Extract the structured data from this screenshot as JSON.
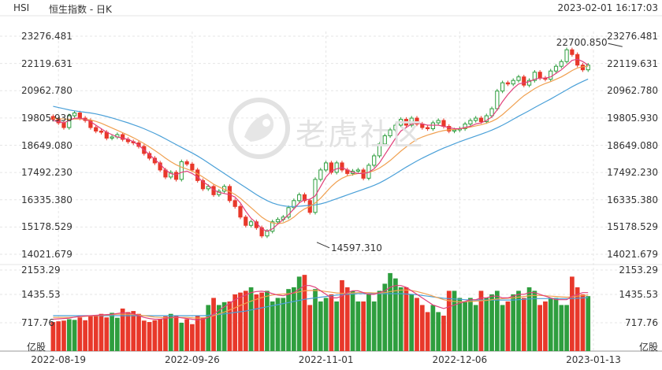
{
  "header": {
    "code": "HSI",
    "name": "恒生指数 - 日K",
    "datetime": "2023-02-01 16:17:03"
  },
  "watermark": "老虎社区",
  "chart_data": {
    "type": "candlestick",
    "price_ticks": [
      "23276.481",
      "22119.631",
      "20962.780",
      "19805.930",
      "18649.080",
      "17492.230",
      "16335.380",
      "15178.529",
      "14021.679"
    ],
    "price_range": [
      14021.679,
      23276.481
    ],
    "volume_ticks": [
      "2153.29",
      "1435.53",
      "717.76"
    ],
    "volume_unit": "亿股",
    "volume_range": [
      0,
      2153.29
    ],
    "date_ticks": [
      {
        "index": 1,
        "label": "2022-08-19"
      },
      {
        "index": 26,
        "label": "2022-09-26"
      },
      {
        "index": 51,
        "label": "2022-11-01"
      },
      {
        "index": 76,
        "label": "2022-12-06"
      },
      {
        "index": 101,
        "label": "2023-01-13"
      }
    ],
    "annotations": [
      {
        "label": "22700.850",
        "index": 107,
        "value": 22700.85
      },
      {
        "label": "14597.310",
        "index": 49,
        "value": 14597.31
      }
    ],
    "ma_colors": {
      "short": "#e0407a",
      "mid": "#f0a050",
      "long": "#4aa0d8"
    },
    "colors": {
      "up": "#2e9e3e",
      "down": "#e8382a",
      "grid": "#e6e6e6",
      "axis": "#999999"
    },
    "close": [
      19750,
      19600,
      19400,
      19900,
      20020,
      19800,
      19700,
      19400,
      19250,
      19200,
      18950,
      19000,
      19100,
      18900,
      18800,
      18750,
      18600,
      18300,
      18100,
      17900,
      17600,
      17300,
      17500,
      17200,
      17950,
      17850,
      17600,
      17150,
      16800,
      16900,
      16550,
      16700,
      16900,
      16300,
      16050,
      15600,
      15250,
      15400,
      15150,
      14800,
      15000,
      15400,
      15500,
      15600,
      16000,
      16300,
      16550,
      16300,
      15800,
      17200,
      17600,
      17900,
      17500,
      17900,
      17600,
      17450,
      17550,
      17600,
      17250,
      17800,
      18200,
      18700,
      19050,
      19300,
      19500,
      19750,
      19500,
      19800,
      19550,
      19400,
      19350,
      19600,
      19700,
      19450,
      19250,
      19300,
      19350,
      19550,
      19700,
      19800,
      19650,
      19900,
      20200,
      20950,
      21300,
      21250,
      21400,
      21550,
      21200,
      21400,
      21750,
      21500,
      21450,
      21800,
      22000,
      22200,
      22700,
      22500,
      22050,
      21850,
      22050
    ],
    "volume": [
      820,
      840,
      860,
      900,
      880,
      950,
      870,
      1000,
      1020,
      1050,
      950,
      1080,
      940,
      1200,
      1100,
      1130,
      1050,
      860,
      820,
      870,
      900,
      980,
      1050,
      1000,
      800,
      900,
      760,
      1000,
      950,
      1300,
      1500,
      1300,
      1380,
      1400,
      1600,
      1650,
      1700,
      1800,
      1600,
      1650,
      1700,
      1400,
      1500,
      1500,
      1750,
      1800,
      2100,
      2150,
      1300,
      1750,
      1400,
      1500,
      1600,
      1400,
      2000,
      1800,
      1700,
      1400,
      1400,
      1600,
      1400,
      1700,
      1900,
      2200,
      2050,
      1800,
      1800,
      1600,
      1500,
      1300,
      1100,
      1300,
      1100,
      1000,
      1700,
      1700,
      1500,
      1400,
      1500,
      1300,
      1700,
      1500,
      1600,
      1700,
      1300,
      1400,
      1600,
      1700,
      1500,
      1800,
      1700,
      1300,
      1400,
      1500,
      1500,
      1300,
      1300,
      2100,
      1800,
      1600,
      1550
    ],
    "ma_short": [
      19700,
      19650,
      19600,
      19700,
      19800,
      19800,
      19750,
      19650,
      19500,
      19350,
      19200,
      19100,
      19000,
      18950,
      18900,
      18800,
      18650,
      18450,
      18250,
      18050,
      17850,
      17600,
      17450,
      17400,
      17500,
      17550,
      17450,
      17300,
      17100,
      16950,
      16750,
      16650,
      16600,
      16550,
      16450,
      16200,
      15850,
      15550,
      15350,
      15100,
      15000,
      15100,
      15300,
      15500,
      15700,
      15950,
      16200,
      16350,
      16350,
      16500,
      16900,
      17300,
      17550,
      17650,
      17700,
      17600,
      17500,
      17450,
      17450,
      17500,
      17650,
      17900,
      18250,
      18600,
      18950,
      19250,
      19400,
      19550,
      19600,
      19550,
      19500,
      19500,
      19500,
      19450,
      19400,
      19350,
      19350,
      19400,
      19450,
      19550,
      19600,
      19700,
      19850,
      20150,
      20500,
      20800,
      21050,
      21250,
      21300,
      21350,
      21450,
      21500,
      21500,
      21550,
      21700,
      21850,
      22050,
      22250,
      22300,
      22200,
      22050
    ],
    "ma_mid": [
      19800,
      19780,
      19760,
      19750,
      19760,
      19760,
      19750,
      19720,
      19660,
      19580,
      19480,
      19380,
      19280,
      19180,
      19080,
      18970,
      18850,
      18720,
      18580,
      18430,
      18270,
      18100,
      17950,
      17820,
      17720,
      17640,
      17550,
      17440,
      17300,
      17150,
      17000,
      16880,
      16780,
      16680,
      16560,
      16400,
      16200,
      16000,
      15800,
      15600,
      15450,
      15350,
      15320,
      15350,
      15450,
      15600,
      15800,
      15950,
      16050,
      16200,
      16400,
      16650,
      16900,
      17100,
      17250,
      17350,
      17400,
      17450,
      17470,
      17500,
      17570,
      17680,
      17830,
      18000,
      18200,
      18400,
      18580,
      18750,
      18900,
      19000,
      19080,
      19150,
      19220,
      19270,
      19300,
      19320,
      19350,
      19380,
      19420,
      19470,
      19520,
      19580,
      19660,
      19780,
      19950,
      20150,
      20350,
      20560,
      20750,
      20900,
      21050,
      21170,
      21270,
      21350,
      21450,
      21550,
      21680,
      21820,
      21930,
      21980,
      22000
    ],
    "ma_long": [
      20300,
      20250,
      20200,
      20150,
      20110,
      20080,
      20050,
      20020,
      19980,
      19930,
      19870,
      19810,
      19740,
      19670,
      19600,
      19520,
      19440,
      19350,
      19250,
      19150,
      19040,
      18920,
      18800,
      18680,
      18560,
      18440,
      18320,
      18190,
      18050,
      17900,
      17750,
      17600,
      17450,
      17300,
      17150,
      17000,
      16850,
      16700,
      16550,
      16420,
      16300,
      16200,
      16130,
      16080,
      16050,
      16050,
      16060,
      16080,
      16100,
      16120,
      16160,
      16220,
      16300,
      16380,
      16460,
      16540,
      16620,
      16700,
      16780,
      16860,
      16950,
      17050,
      17170,
      17300,
      17440,
      17580,
      17720,
      17850,
      17980,
      18100,
      18210,
      18320,
      18430,
      18530,
      18620,
      18710,
      18800,
      18880,
      18960,
      19040,
      19120,
      19200,
      19290,
      19390,
      19500,
      19620,
      19750,
      19880,
      20000,
      20120,
      20250,
      20370,
      20490,
      20610,
      20740,
      20870,
      21000,
      21130,
      21250,
      21360,
      21460
    ],
    "ma_vol_short": [
      900,
      910,
      920,
      930,
      960,
      980,
      990,
      1000,
      1010,
      1020,
      1030,
      1040,
      1060,
      1080,
      1070,
      1050,
      1000,
      950,
      920,
      900,
      900,
      920,
      950,
      960,
      940,
      920,
      900,
      880,
      900,
      950,
      1050,
      1150,
      1250,
      1350,
      1450,
      1520,
      1580,
      1650,
      1680,
      1690,
      1670,
      1620,
      1580,
      1560,
      1600,
      1650,
      1750,
      1850,
      1850,
      1800,
      1700,
      1600,
      1500,
      1500,
      1550,
      1650,
      1700,
      1700,
      1650,
      1600,
      1600,
      1650,
      1700,
      1800,
      1850,
      1850,
      1800,
      1700,
      1600,
      1500,
      1400,
      1300,
      1250,
      1200,
      1250,
      1300,
      1350,
      1400,
      1450,
      1450,
      1500,
      1500,
      1550,
      1550,
      1500,
      1500,
      1550,
      1600,
      1600,
      1650,
      1650,
      1600,
      1550,
      1500,
      1450,
      1450,
      1450,
      1550,
      1600,
      1650,
      1650
    ],
    "ma_vol_mid": [
      950,
      950,
      950,
      950,
      960,
      970,
      980,
      990,
      1000,
      1010,
      1020,
      1030,
      1040,
      1040,
      1040,
      1030,
      1020,
      1000,
      980,
      960,
      950,
      940,
      940,
      950,
      950,
      950,
      940,
      930,
      940,
      960,
      1000,
      1050,
      1100,
      1160,
      1220,
      1290,
      1350,
      1410,
      1460,
      1510,
      1550,
      1580,
      1600,
      1610,
      1620,
      1640,
      1670,
      1700,
      1710,
      1710,
      1700,
      1680,
      1660,
      1640,
      1630,
      1630,
      1640,
      1650,
      1650,
      1650,
      1640,
      1640,
      1650,
      1680,
      1700,
      1720,
      1720,
      1710,
      1680,
      1640,
      1600,
      1550,
      1500,
      1450,
      1420,
      1400,
      1390,
      1390,
      1400,
      1410,
      1420,
      1430,
      1450,
      1470,
      1480,
      1490,
      1500,
      1520,
      1540,
      1560,
      1570,
      1570,
      1560,
      1550,
      1540,
      1530,
      1520,
      1530,
      1550,
      1570,
      1580
    ],
    "ma_vol_long": [
      1000,
      1000,
      1000,
      1000,
      1000,
      1000,
      1000,
      1000,
      1000,
      1000,
      1000,
      1000,
      1000,
      1000,
      1000,
      1000,
      1000,
      1000,
      1000,
      1000,
      1000,
      1000,
      1000,
      1000,
      1000,
      1000,
      1000,
      1000,
      1000,
      1010,
      1020,
      1030,
      1050,
      1070,
      1090,
      1110,
      1130,
      1160,
      1190,
      1220,
      1250,
      1280,
      1310,
      1340,
      1370,
      1400,
      1430,
      1460,
      1480,
      1500,
      1520,
      1540,
      1560,
      1580,
      1590,
      1600,
      1610,
      1620,
      1620,
      1620,
      1620,
      1620,
      1620,
      1620,
      1620,
      1620,
      1610,
      1600,
      1590,
      1570,
      1550,
      1530,
      1510,
      1490,
      1480,
      1470,
      1460,
      1450,
      1440,
      1440,
      1440,
      1440,
      1440,
      1440,
      1440,
      1440,
      1440,
      1450,
      1460,
      1470,
      1480,
      1480,
      1480,
      1480,
      1480,
      1480,
      1480,
      1480,
      1490,
      1500,
      1510
    ]
  }
}
